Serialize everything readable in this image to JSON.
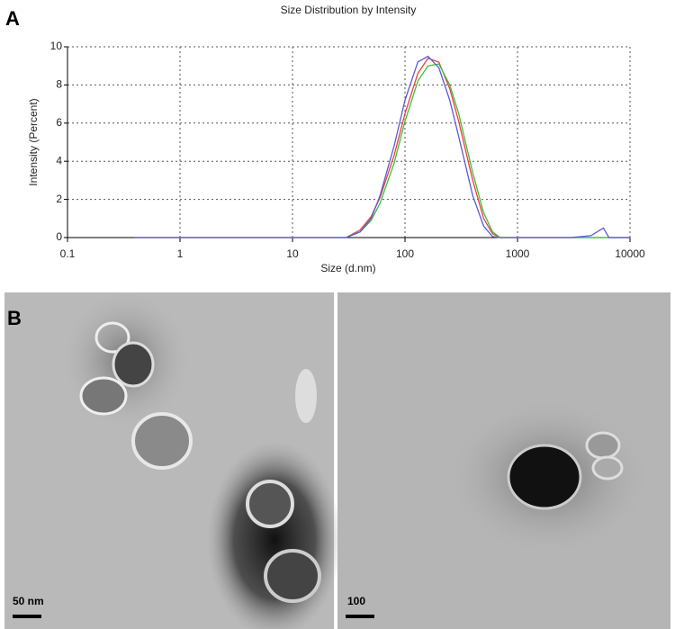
{
  "chart_data": {
    "type": "line",
    "title": "Size Distribution by Intensity",
    "x_label": "Size (d.nm)",
    "y_label": "Intensity (Percent)",
    "x": [
      0.4,
      30,
      40,
      50,
      60,
      80,
      100,
      130,
      160,
      200,
      250,
      300,
      400,
      500,
      600,
      700,
      3000,
      4500,
      5800,
      6500,
      10000
    ],
    "series": [
      {
        "color": "#e8413c",
        "values": [
          0,
          0,
          0.4,
          1.1,
          2.1,
          4.3,
          6.5,
          8.6,
          9.4,
          9.2,
          7.8,
          6.1,
          3.0,
          1.0,
          0.2,
          0,
          0,
          0,
          0,
          0,
          0
        ]
      },
      {
        "color": "#3fbf3f",
        "values": [
          0,
          0,
          0.3,
          0.9,
          1.8,
          3.9,
          6.1,
          8.2,
          9.0,
          9.1,
          8.0,
          6.5,
          3.4,
          1.3,
          0.3,
          0,
          0,
          0,
          0,
          0,
          0
        ]
      },
      {
        "color": "#5a5ad6",
        "values": [
          0,
          0,
          0.3,
          1.0,
          2.2,
          4.8,
          7.2,
          9.2,
          9.5,
          8.9,
          7.2,
          5.3,
          2.2,
          0.6,
          0.05,
          0,
          0,
          0.1,
          0.5,
          0,
          0
        ]
      }
    ],
    "xscale": "log",
    "xlim": [
      0.1,
      10000
    ],
    "xticks": [
      0.1,
      1,
      10,
      100,
      1000,
      10000
    ],
    "ylim": [
      0,
      10
    ],
    "yticks": [
      0,
      2,
      4,
      6,
      8,
      10
    ],
    "grid": true
  },
  "panel_labels": [
    "A",
    "B"
  ],
  "scale_bars": [
    "50 nm",
    "100"
  ]
}
